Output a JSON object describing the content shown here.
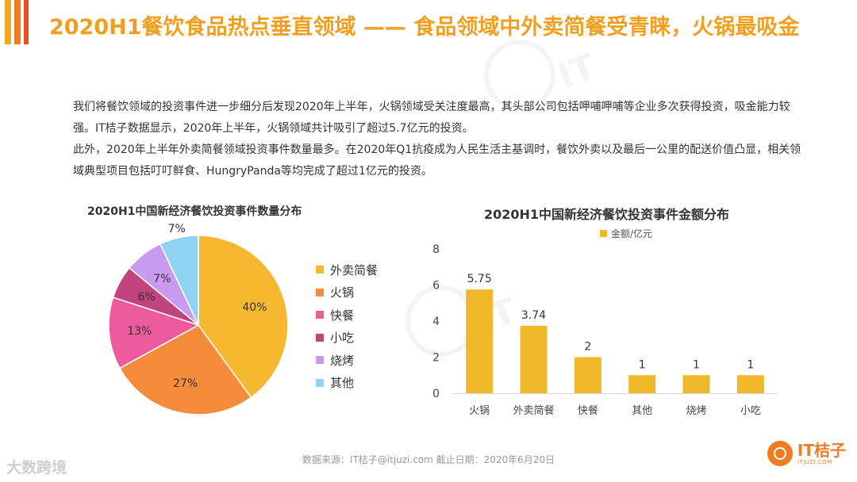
{
  "colors": {
    "accent": "#f0a020",
    "bar": "#f0b92c",
    "pie": [
      "#f5b830",
      "#f48c3c",
      "#ee5b9c",
      "#c2447e",
      "#c89af0",
      "#8ed4f2"
    ]
  },
  "header": {
    "title": "2020H1餐饮食品热点垂直领域 —— 食品领域中外卖简餐受青睐，火锅最吸金"
  },
  "intro": {
    "paragraphs": [
      "我们将餐饮领域的投资事件进一步细分后发现2020年上半年，火锅领域受关注度最高，其头部公司包括呷哺呷哺等企业多次获得投资，吸金能力较强。IT桔子数据显示，2020年上半年，火锅领域共计吸引了超过5.7亿元的投资。",
      "此外，2020年上半年外卖简餐领域投资事件数量最多。在2020年Q1抗疫成为人民生活主基调时，餐饮外卖以及最后一公里的配送价值凸显，相关领域典型项目包括叮叮鲜食、HungryPanda等均完成了超过1亿元的投资。"
    ]
  },
  "chart_data": [
    {
      "type": "pie",
      "title": "2020H1中国新经济餐饮投资事件数量分布",
      "categories": [
        "外卖简餐",
        "火锅",
        "快餐",
        "小吃",
        "烧烤",
        "其他"
      ],
      "values": [
        40,
        27,
        13,
        6,
        7,
        7
      ],
      "labels": [
        "40%",
        "27%",
        "13%",
        "6%",
        "7%",
        "7%"
      ],
      "legend_position": "right"
    },
    {
      "type": "bar",
      "title": "2020H1中国新经济餐饮投资事件金额分布",
      "legend": "金额/亿元",
      "categories": [
        "火锅",
        "外卖简餐",
        "快餐",
        "其他",
        "烧烤",
        "小吃"
      ],
      "values": [
        5.75,
        3.74,
        2,
        1,
        1,
        1
      ],
      "value_labels": [
        "5.75",
        "3.74",
        "2",
        "1",
        "1",
        "1"
      ],
      "ylim": [
        0,
        8
      ],
      "yticks": [
        0,
        2,
        4,
        6,
        8
      ],
      "ytick_labels": [
        "0",
        "2",
        "4",
        "6",
        "8"
      ],
      "grid": false
    }
  ],
  "footer": {
    "source": "数据来源：IT桔子@itjuzi.com   截止日期：2020年6月20日",
    "left_watermark": "大数跨境",
    "logo_name": "IT桔子",
    "logo_url": "ITJUZI.COM"
  }
}
